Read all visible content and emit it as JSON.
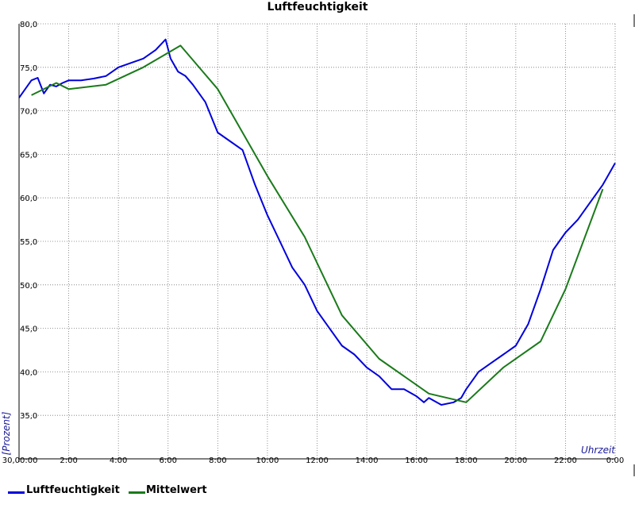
{
  "chart_data": {
    "type": "line",
    "title": "Luftfeuchtigkeit",
    "xlabel": "Uhrzeit",
    "ylabel": "[Prozent]",
    "x_unit": "hours",
    "xlim": [
      0,
      24
    ],
    "ylim": [
      30,
      80
    ],
    "x_tick_labels": [
      "0:00",
      "2:00",
      "4:00",
      "6:00",
      "8:00",
      "10:00",
      "12:00",
      "14:00",
      "16:00",
      "18:00",
      "20:00",
      "22:00",
      "0:00"
    ],
    "y_tick_labels": [
      "30,0",
      "35,0",
      "40,0",
      "45,0",
      "50,0",
      "55,0",
      "60,0",
      "65,0",
      "70,0",
      "75,0",
      "80,0"
    ],
    "grid": true,
    "legend_position": "bottom-left",
    "colors": {
      "Luftfeuchtigkeit": "#0000dd",
      "Mittelwert": "#1a7a1a"
    },
    "series": [
      {
        "name": "Luftfeuchtigkeit",
        "x": [
          0,
          0.25,
          0.5,
          0.75,
          1.0,
          1.25,
          1.5,
          1.75,
          2.0,
          2.5,
          3.0,
          3.5,
          4.0,
          4.5,
          5.0,
          5.5,
          5.9,
          6.1,
          6.4,
          6.7,
          7.0,
          7.5,
          8.0,
          8.5,
          9.0,
          9.5,
          10.0,
          10.5,
          11.0,
          11.5,
          12.0,
          12.5,
          13.0,
          13.5,
          14.0,
          14.5,
          15.0,
          15.5,
          16.0,
          16.3,
          16.5,
          17.0,
          17.5,
          17.8,
          18.0,
          18.5,
          19.0,
          19.5,
          20.0,
          20.5,
          21.0,
          21.5,
          22.0,
          22.5,
          23.0,
          23.5,
          24.0
        ],
        "y": [
          71.5,
          72.5,
          73.5,
          73.8,
          72.0,
          73.0,
          72.8,
          73.2,
          73.5,
          73.5,
          73.7,
          74.0,
          75.0,
          75.5,
          76.0,
          77.0,
          78.2,
          76.0,
          74.5,
          74.0,
          73.0,
          71.0,
          67.5,
          66.5,
          65.5,
          61.5,
          58.0,
          55.0,
          52.0,
          50.0,
          47.0,
          45.0,
          43.0,
          42.0,
          40.5,
          39.5,
          38.0,
          38.0,
          37.2,
          36.5,
          37.0,
          36.2,
          36.5,
          37.0,
          38.0,
          40.0,
          41.0,
          42.0,
          43.0,
          45.5,
          49.5,
          54.0,
          56.0,
          57.5,
          59.5,
          61.5,
          64.0
        ]
      },
      {
        "name": "Mittelwert",
        "x": [
          0.5,
          1.5,
          2.0,
          3.5,
          5.0,
          6.5,
          8.0,
          10.0,
          11.5,
          13.0,
          14.5,
          16.5,
          18.0,
          19.5,
          21.0,
          22.0,
          23.5
        ],
        "y": [
          71.8,
          73.2,
          72.5,
          73.0,
          75.0,
          77.5,
          72.5,
          62.5,
          55.5,
          46.5,
          41.5,
          37.5,
          36.5,
          40.5,
          43.5,
          49.5,
          61.0
        ]
      }
    ]
  }
}
